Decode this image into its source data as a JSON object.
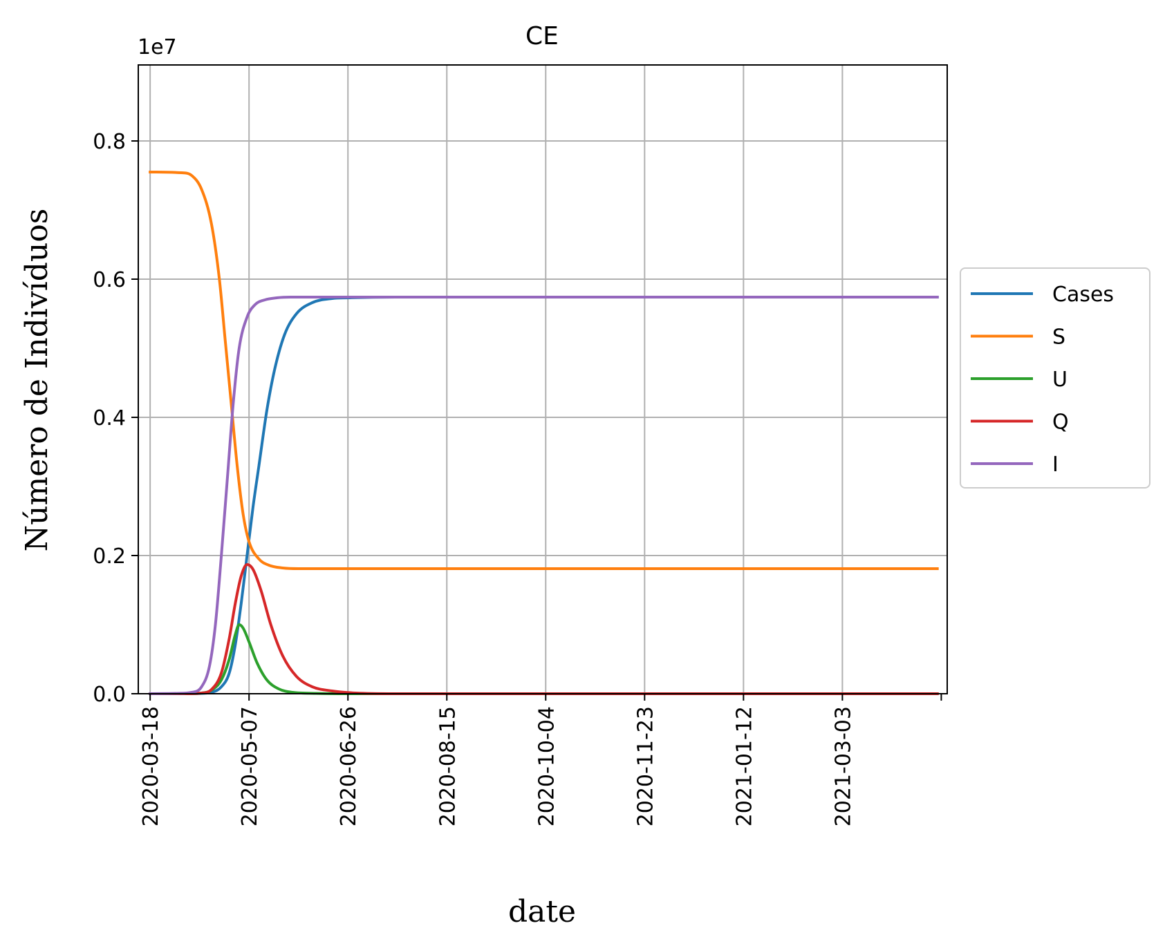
{
  "chart_data": {
    "type": "line",
    "title": "CE",
    "xlabel": "date",
    "ylabel": "Número de Indivíduos",
    "y_offset_label": "1e7",
    "y_scale_factor": 10000000,
    "x_range": [
      "2020-03-12",
      "2021-04-25"
    ],
    "ylim": [
      0,
      0.91
    ],
    "grid": true,
    "legend_position": "outside-right",
    "x_ticks": [
      "2020-03-18",
      "2020-05-07",
      "2020-06-26",
      "2020-08-15",
      "2020-10-04",
      "2020-11-23",
      "2021-01-12",
      "2021-03-03"
    ],
    "y_ticks": [
      0.0,
      0.2,
      0.4,
      0.6,
      0.8
    ],
    "y_tick_labels": [
      "0.0",
      "0.2",
      "0.4",
      "0.6",
      "0.8"
    ],
    "series": [
      {
        "name": "Cases",
        "color": "#1f77b4",
        "x": [
          "2020-03-18",
          "2020-04-03",
          "2020-04-13",
          "2020-04-18",
          "2020-04-23",
          "2020-04-27",
          "2020-04-30",
          "2020-05-03",
          "2020-05-06",
          "2020-05-09",
          "2020-05-12",
          "2020-05-16",
          "2020-05-20",
          "2020-05-25",
          "2020-05-31",
          "2020-06-08",
          "2020-06-18",
          "2020-06-26",
          "2020-07-20",
          "2021-04-20"
        ],
        "y": [
          0.0,
          0.0,
          0.0005,
          0.002,
          0.01,
          0.03,
          0.07,
          0.13,
          0.2,
          0.27,
          0.33,
          0.41,
          0.47,
          0.52,
          0.55,
          0.566,
          0.572,
          0.573,
          0.574,
          0.574
        ]
      },
      {
        "name": "S",
        "color": "#ff7f0e",
        "x": [
          "2020-03-18",
          "2020-04-03",
          "2020-04-08",
          "2020-04-13",
          "2020-04-18",
          "2020-04-22",
          "2020-04-25",
          "2020-04-28",
          "2020-05-01",
          "2020-05-04",
          "2020-05-07",
          "2020-05-12",
          "2020-05-17",
          "2020-05-24",
          "2020-06-01",
          "2020-06-26",
          "2021-04-20"
        ],
        "y": [
          0.755,
          0.754,
          0.75,
          0.73,
          0.68,
          0.6,
          0.51,
          0.42,
          0.33,
          0.26,
          0.22,
          0.195,
          0.186,
          0.182,
          0.181,
          0.181,
          0.181
        ]
      },
      {
        "name": "U",
        "color": "#2ca02c",
        "x": [
          "2020-03-18",
          "2020-04-05",
          "2020-04-13",
          "2020-04-18",
          "2020-04-23",
          "2020-04-27",
          "2020-04-30",
          "2020-05-02",
          "2020-05-04",
          "2020-05-07",
          "2020-05-11",
          "2020-05-16",
          "2020-05-22",
          "2020-05-29",
          "2020-06-10",
          "2020-06-26",
          "2021-04-20"
        ],
        "y": [
          0.0,
          0.0,
          0.001,
          0.005,
          0.02,
          0.05,
          0.085,
          0.1,
          0.095,
          0.075,
          0.045,
          0.02,
          0.007,
          0.002,
          0.0005,
          0.0,
          0.0
        ]
      },
      {
        "name": "Q",
        "color": "#d62728",
        "x": [
          "2020-03-18",
          "2020-04-05",
          "2020-04-13",
          "2020-04-18",
          "2020-04-23",
          "2020-04-27",
          "2020-04-30",
          "2020-05-03",
          "2020-05-06",
          "2020-05-09",
          "2020-05-13",
          "2020-05-18",
          "2020-05-24",
          "2020-05-31",
          "2020-06-08",
          "2020-06-18",
          "2020-06-30",
          "2020-07-20",
          "2021-04-20"
        ],
        "y": [
          0.0,
          0.0,
          0.001,
          0.006,
          0.03,
          0.08,
          0.13,
          0.17,
          0.187,
          0.18,
          0.15,
          0.1,
          0.055,
          0.025,
          0.01,
          0.004,
          0.001,
          0.0,
          0.0
        ]
      },
      {
        "name": "I",
        "color": "#9467bd",
        "x": [
          "2020-03-18",
          "2020-04-01",
          "2020-04-08",
          "2020-04-13",
          "2020-04-17",
          "2020-04-20",
          "2020-04-23",
          "2020-04-26",
          "2020-04-29",
          "2020-05-02",
          "2020-05-06",
          "2020-05-10",
          "2020-05-15",
          "2020-05-21",
          "2020-05-28",
          "2020-06-10",
          "2020-06-26",
          "2021-04-20"
        ],
        "y": [
          0.0,
          0.0005,
          0.002,
          0.01,
          0.04,
          0.1,
          0.2,
          0.31,
          0.42,
          0.5,
          0.545,
          0.563,
          0.57,
          0.573,
          0.574,
          0.574,
          0.574,
          0.574
        ]
      }
    ]
  }
}
